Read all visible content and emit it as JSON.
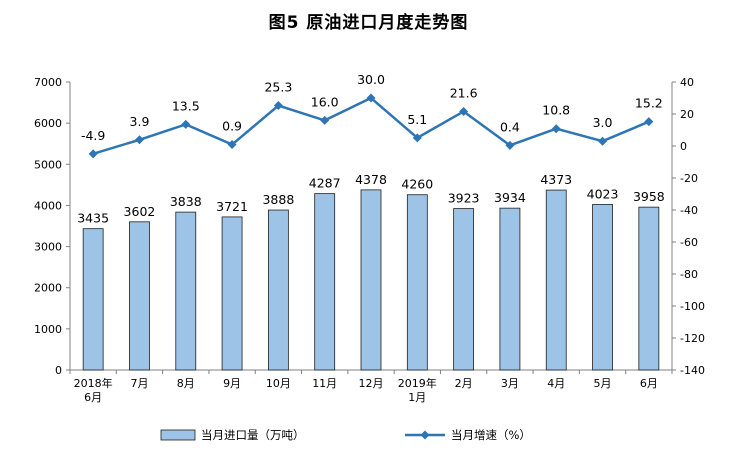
{
  "title": "图5  原油进口月度走势图",
  "chart_data": {
    "type": "bar+line",
    "categories": [
      "2018年\n6月",
      "7月",
      "8月",
      "9月",
      "10月",
      "11月",
      "12月",
      "2019年\n1月",
      "2月",
      "3月",
      "4月",
      "5月",
      "6月"
    ],
    "series": [
      {
        "name": "当月进口量（万吨）",
        "type": "bar",
        "axis": "left",
        "color": "#9DC3E6",
        "values": [
          3435,
          3602,
          3838,
          3721,
          3888,
          4287,
          4378,
          4260,
          3923,
          3934,
          4373,
          4023,
          3958
        ],
        "labels": [
          "3435",
          "3602",
          "3838",
          "3721",
          "3888",
          "4287",
          "4378",
          "4260",
          "3923",
          "3934",
          "4373",
          "4023",
          "3958"
        ]
      },
      {
        "name": "当月增速（%）",
        "type": "line",
        "axis": "right",
        "color": "#2E75B6",
        "values": [
          -4.9,
          3.9,
          13.5,
          0.9,
          25.3,
          16.0,
          30.0,
          5.1,
          21.6,
          0.4,
          10.8,
          3.0,
          15.2
        ],
        "labels": [
          "-4.9",
          "3.9",
          "13.5",
          "0.9",
          "25.3",
          "16.0",
          "30.0",
          "5.1",
          "21.6",
          "0.4",
          "10.8",
          "3.0",
          "15.2"
        ]
      }
    ],
    "y_left": {
      "min": 0,
      "max": 7000,
      "ticks": [
        0,
        1000,
        2000,
        3000,
        4000,
        5000,
        6000,
        7000
      ]
    },
    "y_right": {
      "min": -140,
      "max": 40,
      "ticks": [
        -140,
        -120,
        -100,
        -80,
        -60,
        -40,
        -20,
        0,
        20,
        40
      ]
    },
    "grid": false,
    "legend_position": "bottom"
  }
}
